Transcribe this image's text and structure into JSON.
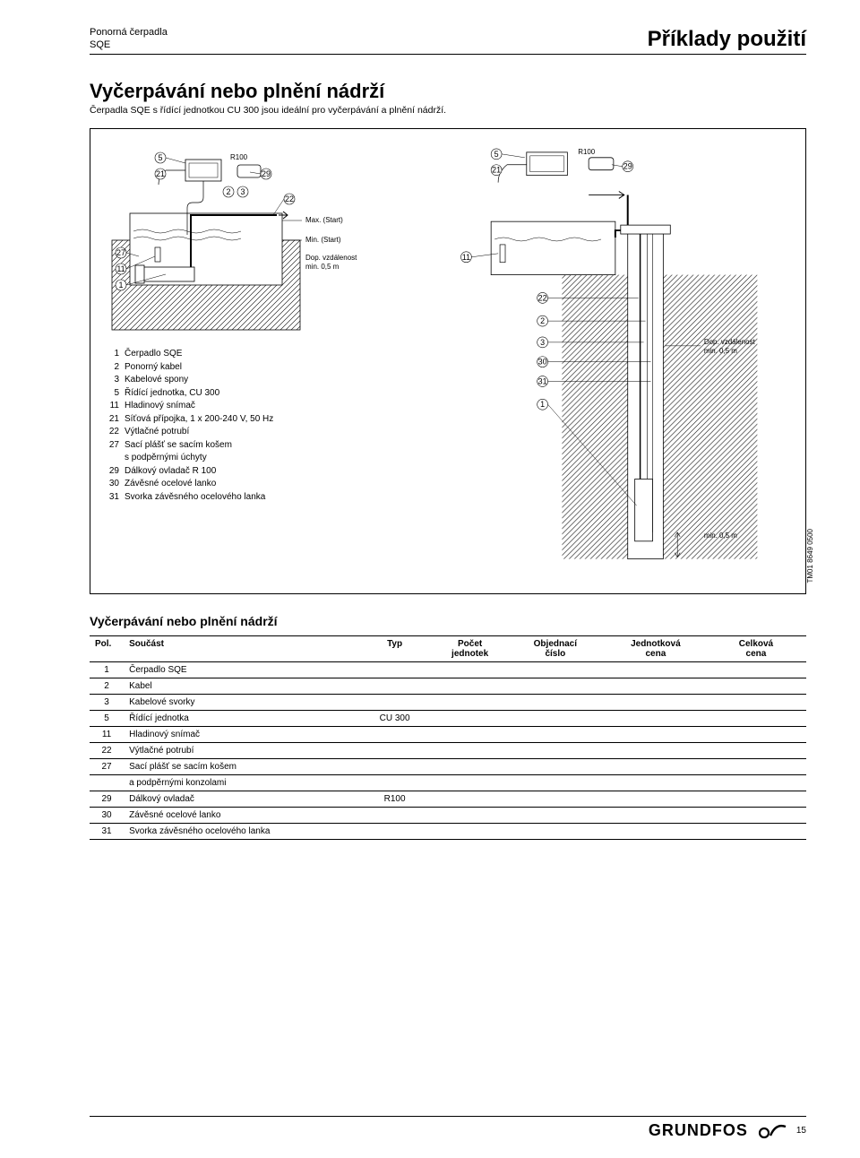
{
  "header": {
    "line1": "Ponorná čerpadla",
    "line2": "SQE",
    "right": "Příklady použití"
  },
  "title": "Vyčerpávání nebo plnění nádrží",
  "subtitle": "Čerpadla SQE s řídící jednotkou CU 300 jsou ideální pro vyčerpávání a plnění nádrží.",
  "diagram": {
    "r100": "R100",
    "max_start": "Max. (Start)",
    "min_start": "Min. (Start)",
    "dop_vzd": "Dop. vzdálenost",
    "min05": "min. 0,5 m",
    "callouts_left_top": [
      "5",
      "21"
    ],
    "callouts_left_row2": [
      "29",
      "2",
      "3",
      "22"
    ],
    "callouts_left_side": [
      "27",
      "11",
      "1"
    ],
    "callouts_right_top": [
      "5",
      "21",
      "29"
    ],
    "callouts_right_side": [
      "11",
      "22",
      "2",
      "3",
      "30",
      "31",
      "1"
    ]
  },
  "legend": [
    {
      "n": "1",
      "t": "Čerpadlo SQE"
    },
    {
      "n": "2",
      "t": "Ponorný kabel"
    },
    {
      "n": "3",
      "t": "Kabelové spony"
    },
    {
      "n": "5",
      "t": "Řídící jednotka, CU 300"
    },
    {
      "n": "11",
      "t": "Hladinový snímač"
    },
    {
      "n": "21",
      "t": "Síťová přípojka, 1 x 200-240 V, 50 Hz"
    },
    {
      "n": "22",
      "t": "Výtlačné potrubí"
    },
    {
      "n": "27",
      "t": "Sací plášť se sacím košem"
    },
    {
      "n": "",
      "t": "s podpěrnými úchyty"
    },
    {
      "n": "29",
      "t": "Dálkový ovladač R 100"
    },
    {
      "n": "30",
      "t": "Závěsné ocelové lanko"
    },
    {
      "n": "31",
      "t": "Svorka závěsného ocelového lanka"
    }
  ],
  "tm_code": "TM01 8649 0500",
  "table_title": "Vyčerpávání nebo plnění nádrží",
  "table": {
    "cols": {
      "pol": "Pol.",
      "soucast": "Součást",
      "typ": "Typ",
      "pocet": "Počet\njednotek",
      "obj": "Objednací\nčíslo",
      "jedn": "Jednotková\ncena",
      "celk": "Celková\ncena"
    },
    "rows": [
      {
        "pol": "1",
        "s": "Čerpadlo SQE",
        "typ": ""
      },
      {
        "pol": "2",
        "s": "Kabel",
        "typ": ""
      },
      {
        "pol": "3",
        "s": "Kabelové svorky",
        "typ": ""
      },
      {
        "pol": "5",
        "s": "Řídící jednotka",
        "typ": "CU 300"
      },
      {
        "pol": "11",
        "s": "Hladinový snímač",
        "typ": ""
      },
      {
        "pol": "22",
        "s": "Výtlačné potrubí",
        "typ": ""
      },
      {
        "pol": "27",
        "s": "Sací plášť se sacím košem",
        "typ": ""
      },
      {
        "pol": "",
        "s": "a podpěrnými konzolami",
        "typ": ""
      },
      {
        "pol": "29",
        "s": "Dálkový ovladač",
        "typ": "R100"
      },
      {
        "pol": "30",
        "s": "Závěsné ocelové lanko",
        "typ": ""
      },
      {
        "pol": "31",
        "s": "Svorka závěsného ocelového lanka",
        "typ": ""
      }
    ]
  },
  "footer": {
    "logo": "GRUNDFOS",
    "page": "15"
  },
  "colors": {
    "stroke": "#000000",
    "hatch": "#000000",
    "fill_light": "#ffffff"
  }
}
